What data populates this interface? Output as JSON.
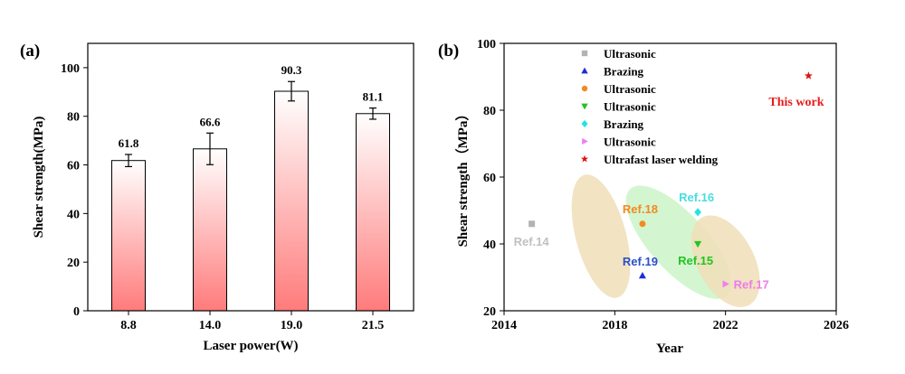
{
  "chart_data": [
    {
      "type": "bar",
      "panel_label": "(a)",
      "title": "",
      "xlabel": "Laser power(W)",
      "ylabel": "Shear strength(MPa)",
      "categories": [
        "8.8",
        "14.0",
        "19.0",
        "21.5"
      ],
      "values": [
        61.8,
        66.6,
        90.3,
        81.1
      ],
      "value_labels": [
        "61.8",
        "66.6",
        "90.3",
        "81.1"
      ],
      "errors": [
        2.5,
        6.5,
        4.0,
        2.3
      ],
      "ylim": [
        0,
        110
      ],
      "yticks": [
        "0",
        "20",
        "40",
        "60",
        "80",
        "100"
      ],
      "ytick_values": [
        0,
        20,
        40,
        60,
        80,
        100
      ],
      "bar_color_top": "#ffffff",
      "bar_color_bottom": "#ff7b7b",
      "grid": false
    },
    {
      "type": "scatter",
      "panel_label": "(b)",
      "title": "",
      "xlabel": "Year",
      "ylabel": "Shear strength（MPa）",
      "xlim": [
        2014,
        2026
      ],
      "ylim": [
        20,
        100
      ],
      "xticks": [
        "2014",
        "2018",
        "2022",
        "2026"
      ],
      "xtick_values": [
        2014,
        2018,
        2022,
        2026
      ],
      "yticks": [
        "20",
        "40",
        "60",
        "80",
        "100"
      ],
      "ytick_values": [
        20,
        40,
        60,
        80,
        100
      ],
      "legend_position": "top-left",
      "grid": false,
      "series": [
        {
          "name": "Ultrasonic",
          "marker": "square",
          "color": "#b3b3b3",
          "x": 2015,
          "y": 46,
          "label": "Ref.14",
          "label_color": "#c0c0c0"
        },
        {
          "name": "Brazing",
          "marker": "triangle-up",
          "color": "#1c2ed8",
          "x": 2019,
          "y": 30.5,
          "label": "Ref.19",
          "label_color": "#2a4fc8"
        },
        {
          "name": "Ultrasonic",
          "marker": "circle",
          "color": "#f4891e",
          "x": 2019,
          "y": 46,
          "label": "Ref.18",
          "label_color": "#f4891e"
        },
        {
          "name": "Ultrasonic",
          "marker": "triangle-down",
          "color": "#22c422",
          "x": 2021,
          "y": 40,
          "label": "Ref.15",
          "label_color": "#22c422"
        },
        {
          "name": "Brazing",
          "marker": "diamond",
          "color": "#23e3e3",
          "x": 2021,
          "y": 49.5,
          "label": "Ref.16",
          "label_color": "#48dde0"
        },
        {
          "name": "Ultrasonic",
          "marker": "triangle-right",
          "color": "#f07ef0",
          "x": 2022,
          "y": 28,
          "label": "Ref.17",
          "label_color": "#ee7ce8"
        },
        {
          "name": "Ultrafast laser welding",
          "marker": "star",
          "color": "#e01010",
          "x": 2025,
          "y": 90.3,
          "label": "This work",
          "label_color": "#e81c1c"
        }
      ],
      "regions": [
        {
          "cx": 2017.5,
          "cy": 42.3,
          "rx": 2.3,
          "ry": 7.5,
          "rotate": -15,
          "color": "#f0deb8"
        },
        {
          "cx": 2020.3,
          "cy": 40.5,
          "rx": 2.6,
          "ry": 8.5,
          "rotate": -42,
          "color": "#cbf5c8"
        },
        {
          "cx": 2022.0,
          "cy": 34.8,
          "rx": 1.8,
          "ry": 8.5,
          "rotate": -28,
          "color": "#f0deb8"
        }
      ]
    }
  ]
}
